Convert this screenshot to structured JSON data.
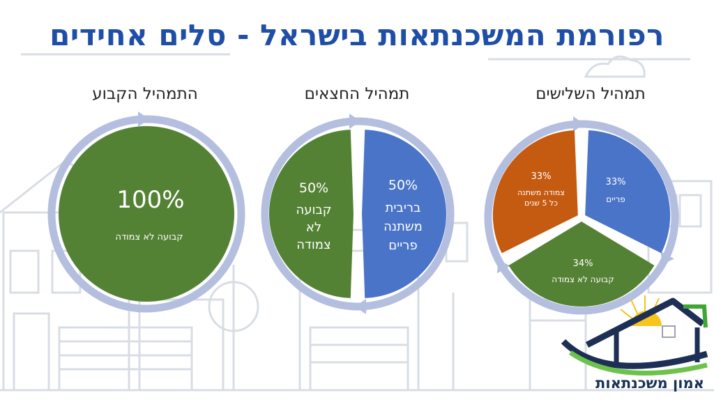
{
  "title": "רפורמת המשכנתאות בישראל - סלים אחידים",
  "colors": {
    "blue": "#4a74c8",
    "green": "#548235",
    "orange": "#c55a11",
    "ring": "#b4bedf",
    "title": "#1e4ea8"
  },
  "chart_data": [
    {
      "type": "pie",
      "title": "התמהיל הקבוע",
      "slices": [
        {
          "value": 100,
          "pct_label": "100%",
          "label_lines": [
            "קבועה לא צמודה"
          ],
          "color": "#548235"
        }
      ]
    },
    {
      "type": "pie",
      "title": "תמהיל החצאים",
      "slices": [
        {
          "value": 50,
          "pct_label": "50%",
          "label_lines": [
            "בריבית",
            "משתנה",
            "פריים"
          ],
          "color": "#4a74c8"
        },
        {
          "value": 50,
          "pct_label": "50%",
          "label_lines": [
            "קבועה",
            "לא",
            "צמודה"
          ],
          "color": "#548235"
        }
      ]
    },
    {
      "type": "pie",
      "title": "תמהיל השלישים",
      "slices": [
        {
          "value": 33,
          "pct_label": "33%",
          "label_lines": [
            "פריים"
          ],
          "color": "#4a74c8"
        },
        {
          "value": 34,
          "pct_label": "34%",
          "label_lines": [
            "קבועה לא צמודה"
          ],
          "color": "#548235"
        },
        {
          "value": 33,
          "pct_label": "33%",
          "label_lines": [
            "צמודה משתנה",
            "כל 5 שנים"
          ],
          "color": "#c55a11"
        }
      ]
    }
  ],
  "logo": {
    "text": "אמון משכנתאות"
  }
}
